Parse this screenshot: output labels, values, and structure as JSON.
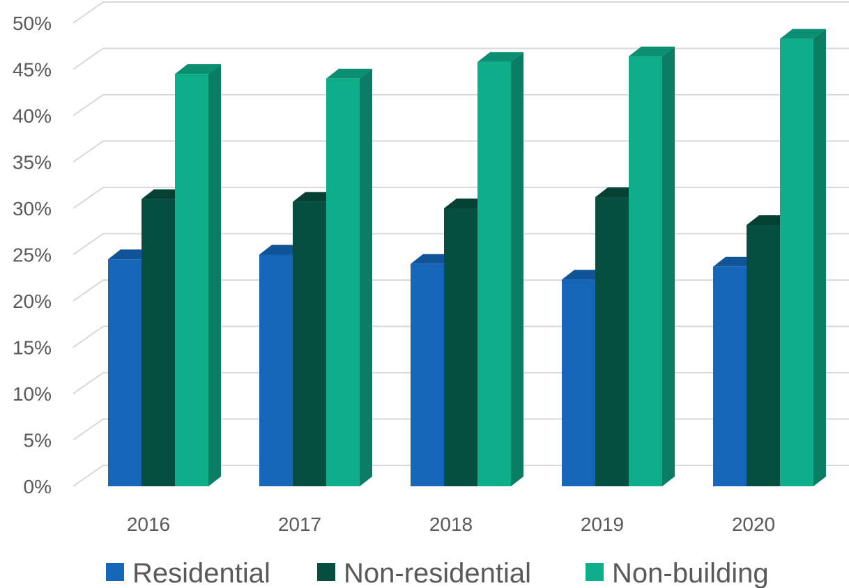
{
  "chart_data": {
    "type": "bar",
    "style": "3d-clustered-column",
    "categories": [
      "2016",
      "2017",
      "2018",
      "2019",
      "2020"
    ],
    "series": [
      {
        "name": "Residential",
        "values": [
          24.5,
          25.0,
          24.0,
          22.3,
          23.7
        ],
        "color": "#1565b8"
      },
      {
        "name": "Non-residential",
        "values": [
          31.0,
          30.7,
          30.0,
          31.2,
          28.2
        ],
        "color": "#064e40"
      },
      {
        "name": "Non-building",
        "values": [
          44.5,
          44.0,
          45.8,
          46.4,
          48.3
        ],
        "color": "#0eae8b"
      }
    ],
    "y_ticks": [
      "0%",
      "5%",
      "10%",
      "15%",
      "20%",
      "25%",
      "30%",
      "35%",
      "40%",
      "45%",
      "50%"
    ],
    "ylim": [
      0,
      50
    ],
    "grid": true,
    "legend_position": "bottom",
    "title": "",
    "xlabel": "",
    "ylabel": ""
  }
}
